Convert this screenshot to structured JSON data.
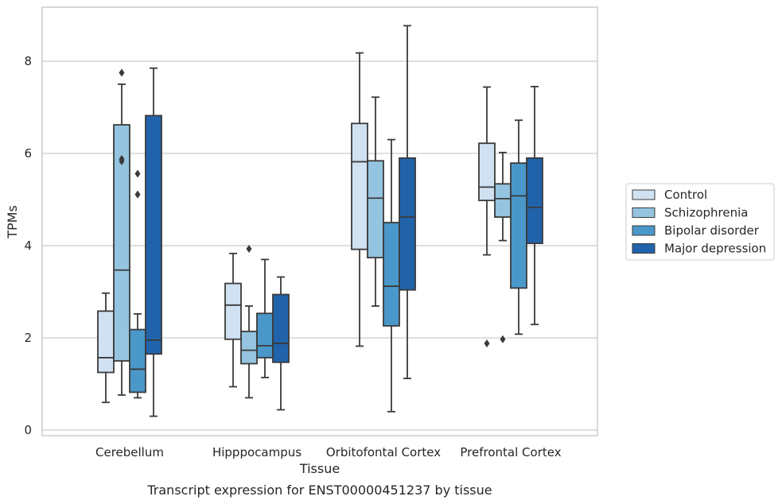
{
  "chart_data": {
    "type": "boxplot",
    "title": "",
    "caption": "Transcript expression for ENST00000451237 by tissue",
    "xlabel": "Tissue",
    "ylabel": "TPMs",
    "ylim": [
      -0.15,
      9.15
    ],
    "yticks": [
      0,
      2,
      4,
      6,
      8
    ],
    "grid": "horizontal",
    "legend_position": "right",
    "categories": [
      "Cerebellum",
      "Hipppocampus",
      "Orbitofontal Cortex",
      "Prefrontal Cortex"
    ],
    "series": [
      {
        "name": "Control",
        "color": "#d0e1f2",
        "boxes": [
          {
            "whislo": 0.6,
            "q1": 1.25,
            "med": 1.57,
            "q3": 2.58,
            "whishi": 2.97,
            "fliers": []
          },
          {
            "whislo": 0.94,
            "q1": 1.97,
            "med": 2.71,
            "q3": 3.18,
            "whishi": 3.83,
            "fliers": []
          },
          {
            "whislo": 1.82,
            "q1": 3.92,
            "med": 5.82,
            "q3": 6.65,
            "whishi": 8.18,
            "fliers": []
          },
          {
            "whislo": 3.8,
            "q1": 4.98,
            "med": 5.27,
            "q3": 6.22,
            "whishi": 7.44,
            "fliers": [
              1.88
            ]
          }
        ]
      },
      {
        "name": "Schizophrenia",
        "color": "#94c4df",
        "boxes": [
          {
            "whislo": 0.76,
            "q1": 1.5,
            "med": 3.47,
            "q3": 6.62,
            "whishi": 7.5,
            "fliers": [
              7.75,
              5.88,
              5.83
            ]
          },
          {
            "whislo": 0.7,
            "q1": 1.44,
            "med": 1.73,
            "q3": 2.14,
            "whishi": 2.69,
            "fliers": [
              3.93
            ]
          },
          {
            "whislo": 2.69,
            "q1": 3.74,
            "med": 5.03,
            "q3": 5.84,
            "whishi": 7.22,
            "fliers": []
          },
          {
            "whislo": 4.11,
            "q1": 4.62,
            "med": 5.02,
            "q3": 5.34,
            "whishi": 6.02,
            "fliers": [
              1.97
            ]
          }
        ]
      },
      {
        "name": "Bipolar disorder",
        "color": "#4a98c9",
        "boxes": [
          {
            "whislo": 0.7,
            "q1": 0.82,
            "med": 1.32,
            "q3": 2.18,
            "whishi": 2.52,
            "fliers": [
              5.56,
              5.11
            ]
          },
          {
            "whislo": 1.14,
            "q1": 1.57,
            "med": 1.83,
            "q3": 2.53,
            "whishi": 3.7,
            "fliers": []
          },
          {
            "whislo": 0.4,
            "q1": 2.26,
            "med": 3.12,
            "q3": 4.5,
            "whishi": 6.3,
            "fliers": []
          },
          {
            "whislo": 2.08,
            "q1": 3.08,
            "med": 5.08,
            "q3": 5.79,
            "whishi": 6.72,
            "fliers": []
          }
        ]
      },
      {
        "name": "Major depression",
        "color": "#2163aa",
        "boxes": [
          {
            "whislo": 0.3,
            "q1": 1.65,
            "med": 1.95,
            "q3": 6.82,
            "whishi": 7.85,
            "fliers": []
          },
          {
            "whislo": 0.44,
            "q1": 1.47,
            "med": 1.88,
            "q3": 2.94,
            "whishi": 3.32,
            "fliers": []
          },
          {
            "whislo": 1.12,
            "q1": 3.04,
            "med": 4.62,
            "q3": 5.9,
            "whishi": 8.77,
            "fliers": []
          },
          {
            "whislo": 2.29,
            "q1": 4.05,
            "med": 4.83,
            "q3": 5.9,
            "whishi": 7.45,
            "fliers": []
          }
        ]
      }
    ]
  }
}
